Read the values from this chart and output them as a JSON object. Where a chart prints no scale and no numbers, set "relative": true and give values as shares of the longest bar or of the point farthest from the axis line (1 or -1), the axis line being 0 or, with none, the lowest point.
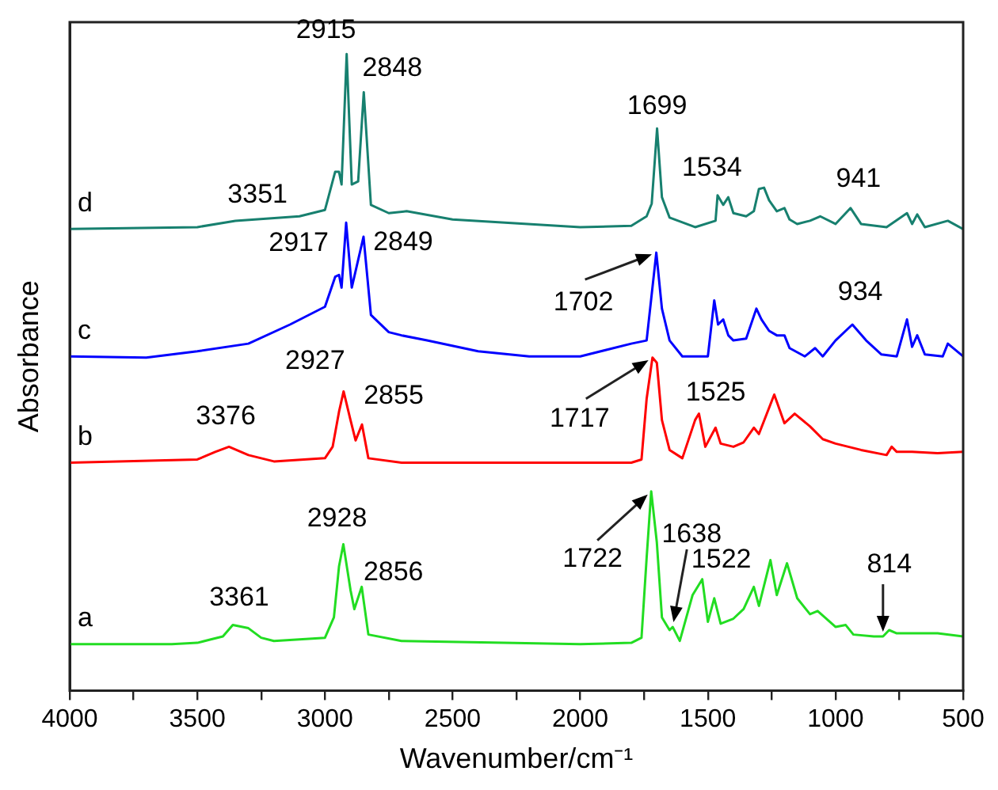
{
  "chart_data": {
    "type": "line",
    "xlabel": "Wavenumber/cm⁻¹",
    "ylabel": "Absorbance",
    "relative": true,
    "grid": false,
    "marker": "none",
    "line_style": "solid",
    "xlim": [
      4000,
      500
    ],
    "xticks": [
      4000,
      {
        "value": 3750,
        "label": null
      },
      3500,
      {
        "value": 3250,
        "label": null
      },
      3000,
      {
        "value": 2750,
        "label": null
      },
      2500,
      {
        "value": 2250,
        "label": null
      },
      2000,
      {
        "value": 1750,
        "label": null
      },
      1500,
      {
        "value": 1250,
        "label": null
      },
      1000,
      {
        "value": 750,
        "label": null
      },
      500
    ],
    "series": [
      {
        "name": "d",
        "color": "#17806f",
        "x": [
          4000,
          3500,
          3351,
          3100,
          3000,
          2960,
          2945,
          2935,
          2915,
          2895,
          2870,
          2848,
          2820,
          2750,
          2680,
          2500,
          2000,
          1800,
          1740,
          1720,
          1699,
          1680,
          1650,
          1550,
          1470,
          1462,
          1440,
          1420,
          1400,
          1350,
          1320,
          1300,
          1280,
          1260,
          1230,
          1200,
          1180,
          1150,
          1100,
          1060,
          1000,
          941,
          900,
          800,
          720,
          700,
          680,
          650,
          560,
          500
        ],
        "values": [
          0.725,
          0.728,
          0.738,
          0.745,
          0.755,
          0.815,
          0.815,
          0.795,
          1.0,
          0.795,
          0.8,
          0.94,
          0.763,
          0.75,
          0.753,
          0.74,
          0.728,
          0.73,
          0.745,
          0.765,
          0.883,
          0.775,
          0.743,
          0.728,
          0.738,
          0.778,
          0.763,
          0.775,
          0.75,
          0.745,
          0.753,
          0.788,
          0.79,
          0.77,
          0.753,
          0.758,
          0.74,
          0.733,
          0.738,
          0.745,
          0.733,
          0.758,
          0.733,
          0.728,
          0.75,
          0.733,
          0.748,
          0.728,
          0.738,
          0.725
        ]
      },
      {
        "name": "c",
        "color": "#0000ff",
        "x": [
          4000,
          3700,
          3500,
          3300,
          3137,
          3000,
          2960,
          2945,
          2935,
          2917,
          2895,
          2849,
          2820,
          2750,
          2700,
          2600,
          2400,
          2200,
          2000,
          1800,
          1740,
          1702,
          1680,
          1650,
          1600,
          1500,
          1475,
          1460,
          1440,
          1420,
          1400,
          1350,
          1310,
          1290,
          1260,
          1230,
          1200,
          1180,
          1120,
          1080,
          1050,
          1000,
          934,
          880,
          820,
          760,
          720,
          700,
          680,
          650,
          580,
          560,
          500
        ],
        "values": [
          0.525,
          0.523,
          0.533,
          0.545,
          0.575,
          0.603,
          0.65,
          0.653,
          0.633,
          0.735,
          0.633,
          0.713,
          0.59,
          0.563,
          0.558,
          0.55,
          0.533,
          0.525,
          0.525,
          0.545,
          0.55,
          0.688,
          0.6,
          0.55,
          0.525,
          0.525,
          0.613,
          0.575,
          0.583,
          0.558,
          0.55,
          0.553,
          0.6,
          0.583,
          0.565,
          0.558,
          0.558,
          0.538,
          0.525,
          0.538,
          0.525,
          0.55,
          0.575,
          0.55,
          0.528,
          0.525,
          0.583,
          0.54,
          0.558,
          0.528,
          0.525,
          0.545,
          0.525
        ]
      },
      {
        "name": "b",
        "color": "#ff0000",
        "x": [
          4000,
          3500,
          3430,
          3376,
          3300,
          3200,
          3000,
          2970,
          2945,
          2927,
          2900,
          2880,
          2855,
          2830,
          2700,
          2000,
          1800,
          1760,
          1740,
          1717,
          1700,
          1680,
          1650,
          1600,
          1550,
          1535,
          1510,
          1470,
          1450,
          1400,
          1360,
          1320,
          1300,
          1240,
          1200,
          1160,
          1100,
          1050,
          1000,
          900,
          800,
          780,
          760,
          700,
          600,
          500
        ],
        "values": [
          0.358,
          0.363,
          0.375,
          0.383,
          0.37,
          0.36,
          0.365,
          0.383,
          0.438,
          0.47,
          0.425,
          0.393,
          0.418,
          0.365,
          0.358,
          0.358,
          0.358,
          0.363,
          0.458,
          0.523,
          0.515,
          0.425,
          0.378,
          0.365,
          0.425,
          0.435,
          0.383,
          0.413,
          0.388,
          0.383,
          0.39,
          0.413,
          0.403,
          0.465,
          0.42,
          0.435,
          0.415,
          0.395,
          0.388,
          0.378,
          0.37,
          0.383,
          0.375,
          0.375,
          0.373,
          0.375
        ]
      },
      {
        "name": "a",
        "color": "#22dd22",
        "x": [
          4000,
          3600,
          3500,
          3450,
          3400,
          3361,
          3300,
          3250,
          3200,
          3000,
          2965,
          2945,
          2928,
          2900,
          2885,
          2856,
          2830,
          2700,
          2300,
          2000,
          1800,
          1760,
          1740,
          1722,
          1700,
          1680,
          1650,
          1638,
          1610,
          1560,
          1522,
          1500,
          1475,
          1450,
          1400,
          1360,
          1320,
          1300,
          1255,
          1230,
          1190,
          1150,
          1100,
          1070,
          1000,
          960,
          930,
          850,
          814,
          790,
          760,
          700,
          600,
          500
        ],
        "values": [
          0.073,
          0.073,
          0.075,
          0.08,
          0.085,
          0.103,
          0.098,
          0.083,
          0.078,
          0.083,
          0.115,
          0.195,
          0.23,
          0.158,
          0.128,
          0.163,
          0.088,
          0.078,
          0.075,
          0.073,
          0.075,
          0.083,
          0.208,
          0.313,
          0.233,
          0.115,
          0.095,
          0.1,
          0.078,
          0.15,
          0.175,
          0.108,
          0.145,
          0.105,
          0.113,
          0.128,
          0.163,
          0.133,
          0.205,
          0.15,
          0.2,
          0.145,
          0.12,
          0.125,
          0.1,
          0.103,
          0.088,
          0.085,
          0.085,
          0.095,
          0.09,
          0.09,
          0.09,
          0.085
        ]
      }
    ],
    "annotations": [
      {
        "text": "2915",
        "x": 2915,
        "y": 1.0
      },
      {
        "text": "2848",
        "x": 2848,
        "y": 0.94
      },
      {
        "text": "3351",
        "x": 3351,
        "y": 0.738
      },
      {
        "text": "1699",
        "x": 1699,
        "y": 0.883
      },
      {
        "text": "1534",
        "x": 1534,
        "y": 0.728
      },
      {
        "text": "941",
        "x": 941,
        "y": 0.758
      },
      {
        "text": "2917",
        "x": 2917,
        "y": 0.735
      },
      {
        "text": "2849",
        "x": 2849,
        "y": 0.713
      },
      {
        "text": "1702",
        "x": 1702,
        "y": 0.688
      },
      {
        "text": "934",
        "x": 934,
        "y": 0.575
      },
      {
        "text": "2927",
        "x": 2927,
        "y": 0.47
      },
      {
        "text": "2855",
        "x": 2855,
        "y": 0.418
      },
      {
        "text": "3376",
        "x": 3376,
        "y": 0.383
      },
      {
        "text": "1717",
        "x": 1717,
        "y": 0.523
      },
      {
        "text": "1525",
        "x": 1525,
        "y": 0.435
      },
      {
        "text": "2928",
        "x": 2928,
        "y": 0.23
      },
      {
        "text": "2856",
        "x": 2856,
        "y": 0.163
      },
      {
        "text": "3361",
        "x": 3361,
        "y": 0.103
      },
      {
        "text": "1722",
        "x": 1722,
        "y": 0.313
      },
      {
        "text": "1638",
        "x": 1638,
        "y": 0.1
      },
      {
        "text": "1522",
        "x": 1522,
        "y": 0.175
      },
      {
        "text": "814",
        "x": 814,
        "y": 0.085
      }
    ]
  }
}
